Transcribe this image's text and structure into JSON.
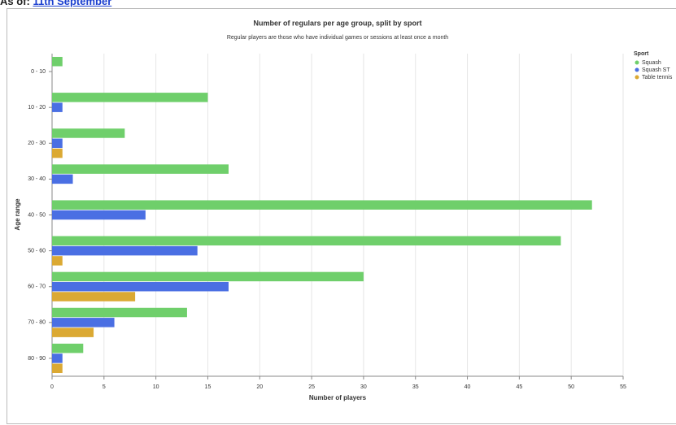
{
  "header": {
    "label": "As of:",
    "date": "11th September"
  },
  "chart_data": {
    "type": "bar",
    "orientation": "horizontal",
    "title": "Number of regulars per age group, split by sport",
    "subtitle": "Regular players are those who have individual games or sessions at least once a month",
    "x_label": "Number of players",
    "y_label": "Age range",
    "categories": [
      "0 - 10",
      "10 - 20",
      "20 - 30",
      "30 - 40",
      "40 - 50",
      "50 - 60",
      "60 - 70",
      "70 - 80",
      "80 - 90"
    ],
    "series": [
      {
        "name": "Squash",
        "color": "#6fcf6b",
        "values": [
          1,
          15,
          7,
          17,
          52,
          49,
          30,
          13,
          3
        ]
      },
      {
        "name": "Squash ST",
        "color": "#4a6fe3",
        "values": [
          null,
          1,
          1,
          2,
          9,
          14,
          17,
          6,
          1
        ]
      },
      {
        "name": "Table tennis",
        "color": "#dba933",
        "values": [
          null,
          null,
          1,
          null,
          null,
          1,
          8,
          4,
          1
        ]
      }
    ],
    "legend_title": "Sport",
    "xlim": [
      0,
      55
    ],
    "xticks": [
      0,
      5,
      10,
      15,
      20,
      25,
      30,
      35,
      40,
      45,
      50,
      55
    ],
    "grid": true,
    "legend": "right"
  }
}
